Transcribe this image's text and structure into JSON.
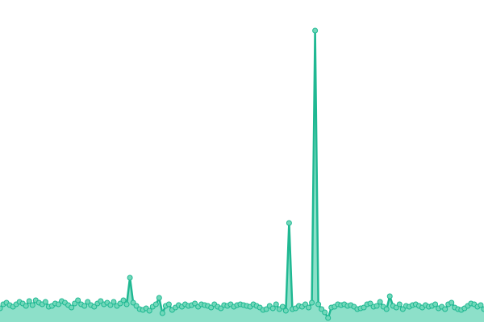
{
  "chart_data": {
    "type": "area",
    "values": [
      17,
      22,
      24,
      21,
      19,
      22,
      25,
      23,
      20,
      26,
      21,
      27,
      24,
      22,
      25,
      19,
      20,
      23,
      22,
      26,
      24,
      21,
      18,
      23,
      27,
      22,
      20,
      25,
      21,
      19,
      23,
      26,
      22,
      24,
      21,
      25,
      20,
      23,
      27,
      22,
      55,
      24,
      20,
      16,
      15,
      17,
      14,
      19,
      22,
      30,
      11,
      20,
      22,
      15,
      18,
      21,
      19,
      22,
      20,
      21,
      23,
      19,
      22,
      21,
      20,
      18,
      22,
      19,
      17,
      21,
      20,
      22,
      19,
      21,
      22,
      21,
      20,
      19,
      22,
      20,
      18,
      15,
      16,
      20,
      17,
      22,
      16,
      19,
      14,
      123,
      16,
      17,
      20,
      19,
      22,
      18,
      24,
      362,
      22,
      16,
      12,
      5,
      18,
      19,
      22,
      21,
      22,
      20,
      21,
      19,
      16,
      17,
      18,
      22,
      23,
      19,
      20,
      25,
      19,
      16,
      32,
      20,
      18,
      22,
      16,
      20,
      19,
      21,
      22,
      20,
      18,
      21,
      19,
      20,
      22,
      17,
      19,
      16,
      22,
      24,
      18,
      16,
      15,
      17,
      20,
      23,
      22,
      19,
      21,
      16
    ],
    "ylim": [
      0,
      400
    ],
    "color": "#1fb892",
    "fill": "#8de0c9",
    "marker_fill": "#72d8ba",
    "markers": true
  }
}
